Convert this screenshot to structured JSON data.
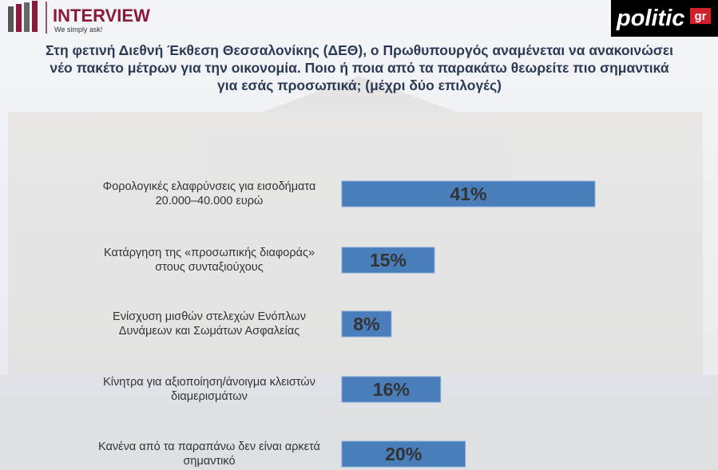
{
  "header": {
    "brand": "INTERVIEW",
    "tagline": "We simply ask!",
    "source": "politic",
    "source_suffix": "gr"
  },
  "chart_data": {
    "type": "hbar",
    "title": "Στη φετινή Διεθνή Έκθεση Θεσσαλονίκης (ΔΕΘ), ο Πρωθυπουργός αναμένεται να ανακοινώσει νέο πακέτο μέτρων για την οικονομία. Ποιο ή ποια από τα παρακάτω θεωρείτε πιο σημαντικά για εσάς προσωπικά; (μέχρι δύο επιλογές)",
    "categories": [
      "Φορολογικές ελαφρύνσεις για εισοδήματα 20.000–40.000 ευρώ",
      "Κατάργηση της «προσωπικής διαφοράς» στους συνταξιούχους",
      "Ενίσχυση μισθών στελεχών Ενόπλων Δυνάμεων και Σωμάτων Ασφαλείας",
      "Κίνητρα για αξιοποίηση/άνοιγμα κλειστών διαμερισμάτων",
      "Κανένα από τα παραπάνω δεν είναι αρκετά σημαντικό"
    ],
    "values": [
      41,
      15,
      8,
      16,
      20
    ],
    "value_labels": [
      "41%",
      "15%",
      "8%",
      "16%",
      "20%"
    ],
    "color": "#4a7ebb"
  }
}
